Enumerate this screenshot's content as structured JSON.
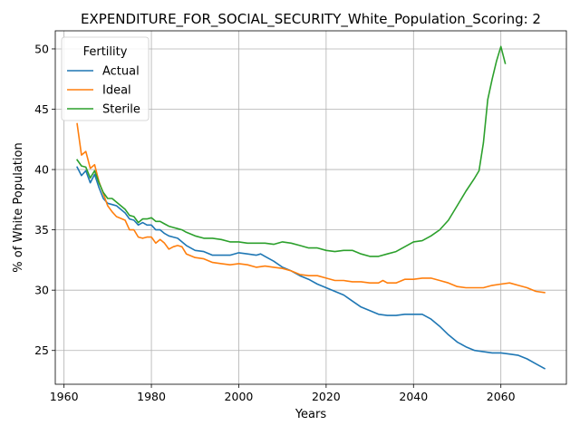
{
  "chart_data": {
    "type": "line",
    "title": "EXPENDITURE_FOR_SOCIAL_SECURITY_White_Population_Scoring: 2",
    "xlabel": "Years",
    "ylabel": "% of White Population",
    "xlim": [
      1958,
      2075
    ],
    "ylim": [
      22.2,
      51.5
    ],
    "xticks": [
      1960,
      1980,
      2000,
      2020,
      2040,
      2060
    ],
    "yticks": [
      25,
      30,
      35,
      40,
      45,
      50
    ],
    "grid": true,
    "legend": {
      "title": "Fertility",
      "placement": "top-left"
    },
    "series": [
      {
        "name": "Actual",
        "color": "#1f77b4",
        "x": [
          1963,
          1964,
          1965,
          1966,
          1967,
          1968,
          1969,
          1970,
          1972,
          1974,
          1975,
          1976,
          1977,
          1978,
          1979,
          1980,
          1981,
          1982,
          1983,
          1984,
          1985,
          1986,
          1988,
          1990,
          1992,
          1994,
          1996,
          1998,
          2000,
          2002,
          2004,
          2005,
          2006,
          2008,
          2010,
          2012,
          2014,
          2016,
          2018,
          2020,
          2022,
          2024,
          2026,
          2028,
          2030,
          2032,
          2034,
          2036,
          2038,
          2040,
          2042,
          2044,
          2046,
          2048,
          2050,
          2052,
          2054,
          2056,
          2058,
          2060,
          2062,
          2064,
          2066,
          2068,
          2070
        ],
        "y": [
          40.2,
          39.5,
          39.9,
          38.9,
          39.6,
          38.5,
          37.6,
          37.2,
          37.0,
          36.4,
          35.9,
          35.8,
          35.4,
          35.6,
          35.4,
          35.4,
          35.0,
          35.0,
          34.7,
          34.5,
          34.4,
          34.3,
          33.7,
          33.3,
          33.2,
          32.9,
          32.9,
          32.9,
          33.1,
          33.0,
          32.9,
          33.0,
          32.8,
          32.4,
          31.9,
          31.6,
          31.2,
          30.9,
          30.5,
          30.2,
          29.9,
          29.6,
          29.1,
          28.6,
          28.3,
          28.0,
          27.9,
          27.9,
          28.0,
          28.0,
          28.0,
          27.6,
          27.0,
          26.3,
          25.7,
          25.3,
          25.0,
          24.9,
          24.8,
          24.8,
          24.7,
          24.6,
          24.3,
          23.9,
          23.5
        ]
      },
      {
        "name": "Ideal",
        "color": "#ff7f0e",
        "x": [
          1963,
          1964,
          1965,
          1966,
          1967,
          1968,
          1969,
          1970,
          1971,
          1972,
          1974,
          1975,
          1976,
          1977,
          1978,
          1979,
          1980,
          1981,
          1982,
          1983,
          1984,
          1985,
          1986,
          1987,
          1988,
          1990,
          1992,
          1994,
          1996,
          1998,
          2000,
          2002,
          2004,
          2006,
          2008,
          2010,
          2012,
          2014,
          2016,
          2018,
          2020,
          2022,
          2024,
          2026,
          2028,
          2030,
          2032,
          2033,
          2034,
          2036,
          2038,
          2040,
          2042,
          2044,
          2046,
          2048,
          2050,
          2052,
          2054,
          2056,
          2058,
          2060,
          2062,
          2064,
          2066,
          2068,
          2070
        ],
        "y": [
          43.8,
          41.2,
          41.5,
          40.1,
          40.4,
          39.0,
          38.0,
          37.0,
          36.5,
          36.1,
          35.8,
          35.0,
          35.0,
          34.4,
          34.3,
          34.4,
          34.4,
          33.9,
          34.2,
          33.9,
          33.4,
          33.6,
          33.7,
          33.6,
          33.0,
          32.7,
          32.6,
          32.3,
          32.2,
          32.1,
          32.2,
          32.1,
          31.9,
          32.0,
          31.9,
          31.8,
          31.6,
          31.3,
          31.2,
          31.2,
          31.0,
          30.8,
          30.8,
          30.7,
          30.7,
          30.6,
          30.6,
          30.8,
          30.6,
          30.6,
          30.9,
          30.9,
          31.0,
          31.0,
          30.8,
          30.6,
          30.3,
          30.2,
          30.2,
          30.2,
          30.4,
          30.5,
          30.6,
          30.4,
          30.2,
          29.9,
          29.8
        ]
      },
      {
        "name": "Sterile",
        "color": "#2ca02c",
        "x": [
          1963,
          1964,
          1965,
          1966,
          1967,
          1968,
          1969,
          1970,
          1971,
          1972,
          1974,
          1975,
          1976,
          1977,
          1978,
          1979,
          1980,
          1981,
          1982,
          1983,
          1984,
          1985,
          1986,
          1987,
          1988,
          1990,
          1992,
          1994,
          1996,
          1998,
          2000,
          2002,
          2004,
          2006,
          2008,
          2010,
          2012,
          2014,
          2016,
          2018,
          2020,
          2022,
          2024,
          2026,
          2028,
          2030,
          2032,
          2034,
          2036,
          2038,
          2040,
          2042,
          2044,
          2046,
          2048,
          2050,
          2052,
          2054,
          2055,
          2056,
          2057,
          2058,
          2059,
          2060,
          2061
        ],
        "y": [
          40.8,
          40.3,
          40.2,
          39.3,
          39.9,
          38.9,
          38.1,
          37.6,
          37.6,
          37.3,
          36.7,
          36.2,
          36.1,
          35.6,
          35.9,
          35.9,
          36.0,
          35.7,
          35.7,
          35.5,
          35.3,
          35.2,
          35.1,
          35.0,
          34.8,
          34.5,
          34.3,
          34.3,
          34.2,
          34.0,
          34.0,
          33.9,
          33.9,
          33.9,
          33.8,
          34.0,
          33.9,
          33.7,
          33.5,
          33.5,
          33.3,
          33.2,
          33.3,
          33.3,
          33.0,
          32.8,
          32.8,
          33.0,
          33.2,
          33.6,
          34.0,
          34.1,
          34.5,
          35.0,
          35.8,
          37.0,
          38.2,
          39.3,
          39.9,
          42.2,
          45.8,
          47.5,
          49.0,
          50.2,
          48.8
        ]
      }
    ]
  }
}
